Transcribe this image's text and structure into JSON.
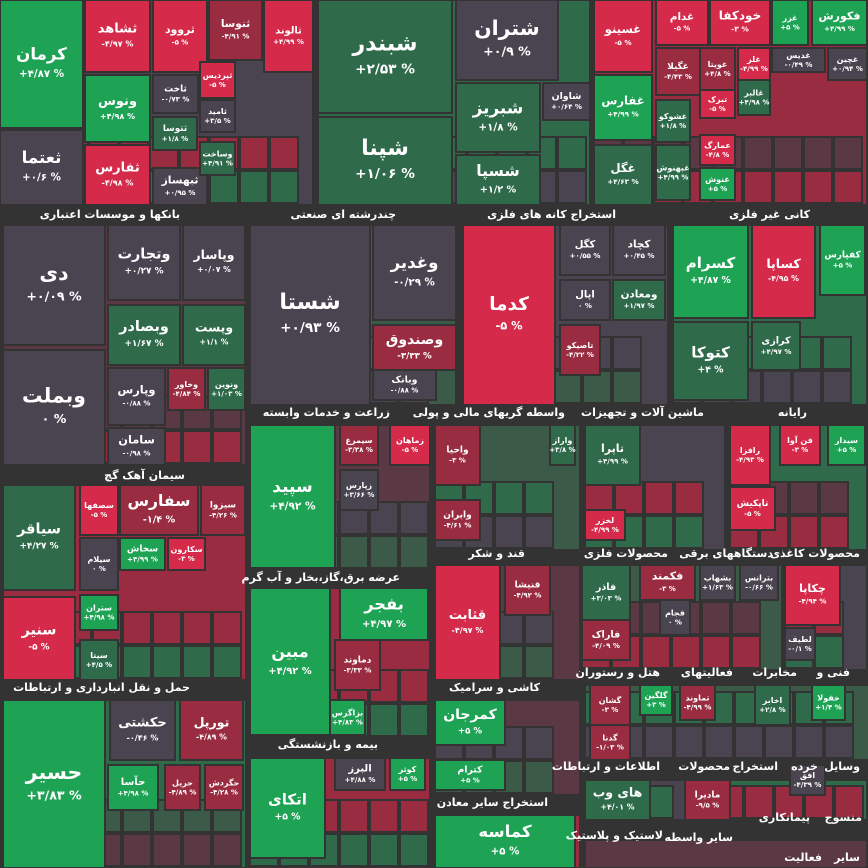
{
  "tiles": [
    {
      "name": "کرمان",
      "change": "+۴/۸۷ %",
      "color": "#1ea355"
    },
    {
      "name": "ثعتما",
      "change": "+۰/۶ %",
      "color": "#4a4450"
    },
    {
      "name": "ثشاهد",
      "change": "-۴/۹۷ %",
      "color": "#d62a4b"
    },
    {
      "name": "ونوس",
      "change": "+۴/۹۸ %",
      "color": "#1ea355"
    },
    {
      "name": "ثفارس",
      "change": "-۴/۹۸ %",
      "color": "#d62a4b"
    },
    {
      "name": "ثروود",
      "change": "-۵ %",
      "color": "#d62a4b"
    },
    {
      "name": "ثاخت",
      "change": "-۰/۷۳ %",
      "color": "#4a4450"
    },
    {
      "name": "ثتوسا",
      "change": "+۱/۸ %",
      "color": "#2f6b4b"
    },
    {
      "name": "ثبهساز",
      "change": "+۰/۹۵ %",
      "color": "#4a4450"
    },
    {
      "name": "ثنوسا",
      "change": "-۴/۹۱ %",
      "color": "#9a2c42"
    },
    {
      "name": "ثپردیس",
      "change": "-۵ %",
      "color": "#d62a4b"
    },
    {
      "name": "ثامید",
      "change": "+۳/۵ %",
      "color": "#4a4450"
    },
    {
      "name": "وساخت",
      "change": "+۴/۹۱ %",
      "color": "#2f6b4b"
    },
    {
      "name": "ثالوند",
      "change": "+۴/۹۹ %",
      "color": "#d62a4b"
    },
    {
      "name": "شبندر",
      "change": "+۲/۵۳ %",
      "color": "#2f6b4b"
    },
    {
      "name": "شپنا",
      "change": "+۱/۰۶ %",
      "color": "#2f6b4b"
    },
    {
      "name": "شتران",
      "change": "+۰/۹ %",
      "color": "#4a4450"
    },
    {
      "name": "شبریز",
      "change": "+۱/۸ %",
      "color": "#2f6b4b"
    },
    {
      "name": "شسپا",
      "change": "+۱/۲ %",
      "color": "#2f6b4b"
    },
    {
      "name": "شاوان",
      "change": "+۰/۶۴ %",
      "color": "#4a4450"
    },
    {
      "name": "غسینو",
      "change": "-۵ %",
      "color": "#d62a4b"
    },
    {
      "name": "غدام",
      "change": "-۵ %",
      "color": "#d62a4b"
    },
    {
      "name": "خودکفا",
      "change": "-۳ %",
      "color": "#d62a4b"
    },
    {
      "name": "غزر",
      "change": "+۵ %",
      "color": "#1ea355"
    },
    {
      "name": "فکورش",
      "change": "+۴/۹۹ %",
      "color": "#1ea355"
    },
    {
      "name": "غگیلا",
      "change": "-۴/۴۳ %",
      "color": "#9a2c42"
    },
    {
      "name": "غویتا",
      "change": "+۴/۸ %",
      "color": "#9a2c42"
    },
    {
      "name": "غفارس",
      "change": "+۴/۹۹ %",
      "color": "#1ea355"
    },
    {
      "name": "غشوکو",
      "change": "+۱/۸ %",
      "color": "#2f6b4b"
    },
    {
      "name": "تبرک",
      "change": "-۵ %",
      "color": "#d62a4b"
    },
    {
      "name": "عمارگ",
      "change": "-۴/۸ %",
      "color": "#d62a4b"
    },
    {
      "name": "غلر",
      "change": "-۴/۹۹ %",
      "color": "#d62a4b"
    },
    {
      "name": "غدیس",
      "change": "-۰/۴۹ %",
      "color": "#4a4450"
    },
    {
      "name": "غچین",
      "change": "+۰/۹۴ %",
      "color": "#4a4450"
    },
    {
      "name": "غالبر",
      "change": "+۴/۹۸ %",
      "color": "#2f6b4b"
    },
    {
      "name": "غگل",
      "change": "+۴/۶۳ %",
      "color": "#2f6b4b"
    },
    {
      "name": "غبهنوش",
      "change": "+۴/۹۹ %",
      "color": "#2f6b4b"
    },
    {
      "name": "غنوش",
      "change": "+۵ %",
      "color": "#1ea355"
    },
    {
      "name": "دی",
      "change": "+۰/۰۹ %",
      "color": "#4a4450"
    },
    {
      "name": "وبملت",
      "change": "۰ %",
      "color": "#4a4450"
    },
    {
      "name": "وتجارت",
      "change": "+۰/۲۷ %",
      "color": "#4a4450"
    },
    {
      "name": "وپاسار",
      "change": "+۰/۰۷ %",
      "color": "#4a4450"
    },
    {
      "name": "وبصادر",
      "change": "+۱/۶۷ %",
      "color": "#2f6b4b"
    },
    {
      "name": "وپست",
      "change": "+۱/۱ %",
      "color": "#2f6b4b"
    },
    {
      "name": "وپارس",
      "change": "-۰/۸۸ %",
      "color": "#4a4450"
    },
    {
      "name": "وخاور",
      "change": "-۴/۸۴ %",
      "color": "#9a2c42"
    },
    {
      "name": "ونوین",
      "change": "+۱/۰۳ %",
      "color": "#2f6b4b"
    },
    {
      "name": "سامان",
      "change": "-۰/۹۸ %",
      "color": "#4a4450"
    },
    {
      "name": "شستا",
      "change": "+۰/۹۳ %",
      "color": "#4a4450"
    },
    {
      "name": "وغدیر",
      "change": "-۰/۲۹ %",
      "color": "#4a4450"
    },
    {
      "name": "وصندوق",
      "change": "-۳/۳۳ %",
      "color": "#9a2c42"
    },
    {
      "name": "وبانک",
      "change": "-۰/۸۸ %",
      "color": "#4a4450"
    },
    {
      "name": "کدما",
      "change": "-۵ %",
      "color": "#d62a4b"
    },
    {
      "name": "کگل",
      "change": "+۰/۵۵ %",
      "color": "#4a4450"
    },
    {
      "name": "کچاد",
      "change": "+۰/۴۵ %",
      "color": "#4a4450"
    },
    {
      "name": "اپال",
      "change": "۰ %",
      "color": "#4a4450"
    },
    {
      "name": "ومعادن",
      "change": "+۱/۹۷ %",
      "color": "#2f6b4b"
    },
    {
      "name": "تاصیکو",
      "change": "-۴/۲۲ %",
      "color": "#9a2c42"
    },
    {
      "name": "کسرام",
      "change": "+۴/۸۷ %",
      "color": "#1ea355"
    },
    {
      "name": "کساپا",
      "change": "-۴/۹۵ %",
      "color": "#d62a4b"
    },
    {
      "name": "کفپارس",
      "change": "+۵ %",
      "color": "#1ea355"
    },
    {
      "name": "کتوکا",
      "change": "+۴ %",
      "color": "#2f6b4b"
    },
    {
      "name": "کرازی",
      "change": "+۴/۹۷ %",
      "color": "#2f6b4b"
    },
    {
      "name": "سپید",
      "change": "+۴/۹۲ %",
      "color": "#1ea355"
    },
    {
      "name": "سیمرغ",
      "change": "-۳/۳۸ %",
      "color": "#9a2c42"
    },
    {
      "name": "زماهان",
      "change": "-۵ %",
      "color": "#d62a4b"
    },
    {
      "name": "زپارس",
      "change": "+۳/۶۶ %",
      "color": "#4a4450"
    },
    {
      "name": "واحیا",
      "change": "-۳ %",
      "color": "#9a2c42"
    },
    {
      "name": "واراز",
      "change": "+۳/۸ %",
      "color": "#2f6b4b"
    },
    {
      "name": "وایران",
      "change": "-۴/۶۱ %",
      "color": "#9a2c42"
    },
    {
      "name": "تاپرا",
      "change": "+۴/۹۹ %",
      "color": "#2f6b4b"
    },
    {
      "name": "لخزر",
      "change": "-۴/۹۹ %",
      "color": "#d62a4b"
    },
    {
      "name": "رافزا",
      "change": "-۴/۹۳ %",
      "color": "#d62a4b"
    },
    {
      "name": "فن آوا",
      "change": "-۳ %",
      "color": "#d62a4b"
    },
    {
      "name": "سیدار",
      "change": "+۵ %",
      "color": "#1ea355"
    },
    {
      "name": "تاپکیش",
      "change": "-۵ %",
      "color": "#d62a4b"
    },
    {
      "name": "سیاقر",
      "change": "+۴/۲۷ %",
      "color": "#2f6b4b"
    },
    {
      "name": "سنیر",
      "change": "-۵ %",
      "color": "#d62a4b"
    },
    {
      "name": "سصفها",
      "change": "-۵ %",
      "color": "#d62a4b"
    },
    {
      "name": "سفارس",
      "change": "-۱/۴ %",
      "color": "#9a2c42"
    },
    {
      "name": "سیزوا",
      "change": "-۴/۲۶ %",
      "color": "#9a2c42"
    },
    {
      "name": "سخاش",
      "change": "+۴/۹۹ %",
      "color": "#1ea355"
    },
    {
      "name": "سکارون",
      "change": "-۳ %",
      "color": "#d62a4b"
    },
    {
      "name": "سیلام",
      "change": "۰ %",
      "color": "#4a4450"
    },
    {
      "name": "ستران",
      "change": "+۴/۹۸ %",
      "color": "#1ea355"
    },
    {
      "name": "سیتا",
      "change": "+۴/۵ %",
      "color": "#2f6b4b"
    },
    {
      "name": "قنیشا",
      "change": "-۴/۹۲ %",
      "color": "#9a2c42"
    },
    {
      "name": "قثابت",
      "change": "-۴/۹۷ %",
      "color": "#d62a4b"
    },
    {
      "name": "فاذر",
      "change": "+۳/۰۳ %",
      "color": "#2f6b4b"
    },
    {
      "name": "فکمند",
      "change": "-۳ %",
      "color": "#9a2c42"
    },
    {
      "name": "فجام",
      "change": "۰ %",
      "color": "#4a4450"
    },
    {
      "name": "فاراک",
      "change": "-۴/۰۹ %",
      "color": "#9a2c42"
    },
    {
      "name": "بشهاب",
      "change": "+۱/۶۳ %",
      "color": "#4a4450"
    },
    {
      "name": "بترانس",
      "change": "-۰/۶۶ %",
      "color": "#4a4450"
    },
    {
      "name": "چکاپا",
      "change": "-۴/۹۴ %",
      "color": "#d62a4b"
    },
    {
      "name": "لطیف",
      "change": "-۰/۱ %",
      "color": "#4a4450"
    },
    {
      "name": "بفجر",
      "change": "+۴/۹۷ %",
      "color": "#1ea355"
    },
    {
      "name": "مبین",
      "change": "+۴/۹۲ %",
      "color": "#1ea355"
    },
    {
      "name": "دماوند",
      "change": "-۳/۳۳ %",
      "color": "#9a2c42"
    },
    {
      "name": "بزاگرس",
      "change": "+۴/۸۳ %",
      "color": "#1ea355"
    },
    {
      "name": "کمرجان",
      "change": "+۵ %",
      "color": "#1ea355"
    },
    {
      "name": "کترام",
      "change": "+۵ %",
      "color": "#1ea355"
    },
    {
      "name": "گشان",
      "change": "-۳ %",
      "color": "#9a2c42"
    },
    {
      "name": "گلگین",
      "change": "+۳ %",
      "color": "#1ea355"
    },
    {
      "name": "گدنا",
      "change": "-۱/۰۳ %",
      "color": "#9a2c42"
    },
    {
      "name": "تماوند",
      "change": "-۴/۹۹ %",
      "color": "#9a2c42"
    },
    {
      "name": "اخابر",
      "change": "+۲/۸ %",
      "color": "#2f6b4b"
    },
    {
      "name": "خفولا",
      "change": "+۱/۴ %",
      "color": "#1ea355"
    },
    {
      "name": "حسیر",
      "change": "+۳/۸۳ %",
      "color": "#1ea355"
    },
    {
      "name": "حکشتی",
      "change": "-۰/۴۶ %",
      "color": "#4a4450"
    },
    {
      "name": "تورپل",
      "change": "-۴/۸۹ %",
      "color": "#9a2c42"
    },
    {
      "name": "حآسا",
      "change": "+۴/۹۸ %",
      "color": "#1ea355"
    },
    {
      "name": "حریل",
      "change": "-۴/۸۹ %",
      "color": "#9a2c42"
    },
    {
      "name": "حگردش",
      "change": "-۴/۲۸ %",
      "color": "#9a2c42"
    },
    {
      "name": "اتکای",
      "change": "+۵ %",
      "color": "#1ea355"
    },
    {
      "name": "البرز",
      "change": "+۴/۸۸ %",
      "color": "#4a4450"
    },
    {
      "name": "کوثر",
      "change": "+۵ %",
      "color": "#1ea355"
    },
    {
      "name": "های وب",
      "change": "+۴/۰۱ %",
      "color": "#2f6b4b"
    },
    {
      "name": "مادیرا",
      "change": "-۹/۵ %",
      "color": "#9a2c42"
    },
    {
      "name": "افق",
      "change": "-۴/۳۹ %",
      "color": "#4a4450"
    },
    {
      "name": "کماسه",
      "change": "+۵ %",
      "color": "#1ea355"
    }
  ],
  "sectors": [
    "بانکها و موسسات اعتباری",
    "چندرشته ای صنعتی",
    "استخراج کانه های فلزی",
    "کانی غیر فلزی",
    "زراعت و خدمات وابسته",
    "واسطه گریهای مالی و پولی",
    "ماشین آلات و تجهیزات",
    "رایانه",
    "سیمان آهک گچ",
    "قند و شکر",
    "محصولات فلزی",
    "دستگاههای برقی",
    "محصولات کاغذی",
    "عرضه برق،گاز،بخار و آب گرم",
    "هتل و رستوران",
    "فعالیتهای",
    "مخابرات",
    "فنی و",
    "حمل و نقل انبارداری و ارتباطات",
    "کاشی و سرامیک",
    "بیمه و بازنشستگی",
    "اطلاعات و ارتباطات",
    "محصولات",
    "استخراج",
    "خرده",
    "وسایل",
    "استخراج سایر معادن",
    "پیمانکاری",
    "منسوج",
    "لاستیک و پلاستیک",
    "سایر واسطه",
    "فعالیت",
    "سایر"
  ]
}
